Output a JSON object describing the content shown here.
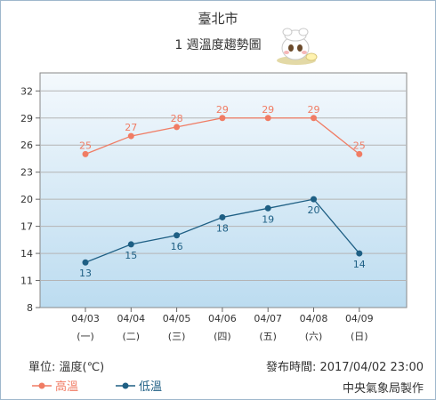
{
  "header": {
    "city": "臺北市",
    "subtitle": "1 週溫度趨勢圖"
  },
  "footer": {
    "unit": "單位: 溫度(℃)",
    "issued": "發布時間: 2017/04/02 23:00",
    "producer": "中央氣象局製作"
  },
  "colors": {
    "high": "#f07c64",
    "low": "#1e5f84",
    "plot_top": "#f4f9fd",
    "plot_bottom": "#bcdcf0"
  },
  "chart_data": {
    "type": "line",
    "categories": [
      "04/03",
      "04/04",
      "04/05",
      "04/06",
      "04/07",
      "04/08",
      "04/09"
    ],
    "weekdays": [
      "(一)",
      "(二)",
      "(三)",
      "(四)",
      "(五)",
      "(六)",
      "(日)"
    ],
    "series": [
      {
        "name": "高溫",
        "values": [
          25,
          27,
          28,
          29,
          29,
          29,
          25
        ]
      },
      {
        "name": "低溫",
        "values": [
          13,
          15,
          16,
          18,
          19,
          20,
          14
        ]
      }
    ],
    "yticks": [
      8,
      11,
      14,
      17,
      20,
      23,
      26,
      29,
      32
    ],
    "ylim": [
      8,
      34
    ],
    "grid": true,
    "legend": "bottom-left"
  }
}
